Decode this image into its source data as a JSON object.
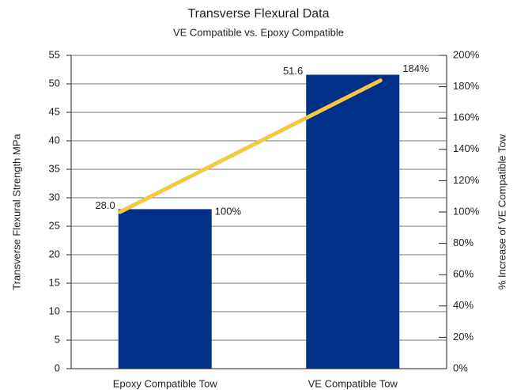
{
  "chart_data": {
    "type": "bar",
    "title": "Transverse Flexural Data",
    "subtitle": "VE Compatible vs. Epoxy Compatible",
    "ylabel": "Transverse Flexural Strength MPa",
    "y2label": "% Increase of VE Compatible Tow",
    "categories": [
      "Epoxy Compatible Tow",
      "VE Compatible Tow"
    ],
    "values": [
      28.0,
      51.6
    ],
    "value_labels": [
      "28.0",
      "51.6"
    ],
    "color": "#003087",
    "series": [
      {
        "type": "line",
        "axis": "y2",
        "color": "#f5c842",
        "values": [
          100,
          184
        ],
        "value_labels": [
          "100%",
          "184%"
        ]
      }
    ],
    "ylim": [
      0,
      55
    ],
    "yticks": [
      0,
      5,
      10,
      15,
      20,
      25,
      30,
      35,
      40,
      45,
      50,
      55
    ],
    "y2lim": [
      0,
      200
    ],
    "y2ticks": [
      {
        "value": 0,
        "label": "0%"
      },
      {
        "value": 20,
        "label": "20%"
      },
      {
        "value": 40,
        "label": "40%"
      },
      {
        "value": 60,
        "label": "60%"
      },
      {
        "value": 80,
        "label": "80%"
      },
      {
        "value": 100,
        "label": "100%"
      },
      {
        "value": 120,
        "label": "120%"
      },
      {
        "value": 140,
        "label": "140%"
      },
      {
        "value": 160,
        "label": "160%"
      },
      {
        "value": 180,
        "label": "180%"
      },
      {
        "value": 200,
        "label": "200%"
      }
    ],
    "grid": true
  }
}
